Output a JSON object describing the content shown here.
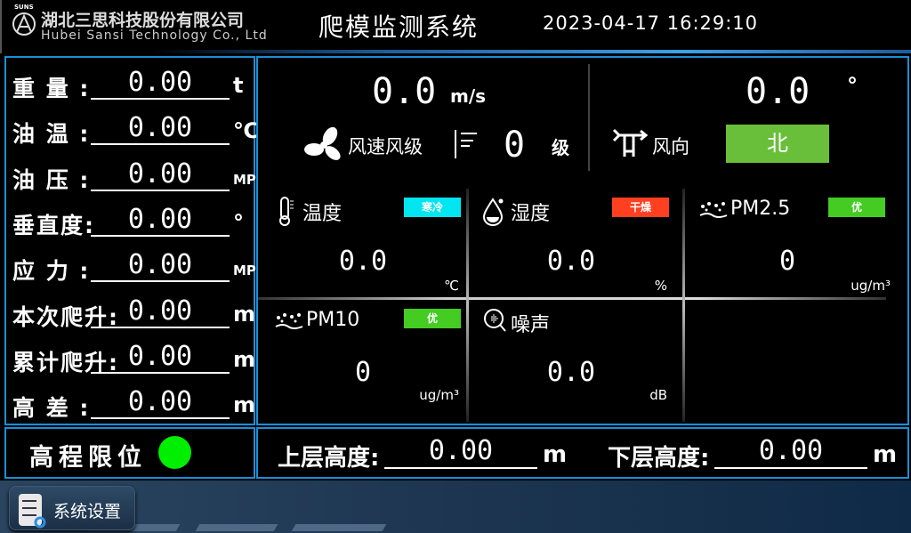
{
  "header": {
    "company_cn": "湖北三思科技股份有限公司",
    "company_en": "Hubei Sansi Technology Co., Ltd",
    "logo_top": "SUNS",
    "title": "爬模监测系统",
    "datetime": "2023-04-17 16:29:10"
  },
  "left": {
    "rows": [
      {
        "label": "重 量 :",
        "value": "0.00",
        "unit": "t"
      },
      {
        "label": "油 温 :",
        "value": "0.00",
        "unit": "℃"
      },
      {
        "label": "油 压 :",
        "value": "0.00",
        "unit": "MPa"
      },
      {
        "label": "垂直度:",
        "value": "0.00",
        "unit": "°"
      },
      {
        "label": "应 力 :",
        "value": "0.00",
        "unit": "MPa"
      },
      {
        "label": "本次爬升:",
        "value": "0.00",
        "unit": "m"
      },
      {
        "label": "累计爬升:",
        "value": "0.00",
        "unit": "m"
      },
      {
        "label": "高 差 :",
        "value": "0.00",
        "unit": "m"
      }
    ]
  },
  "wind": {
    "speed": "0.0",
    "speed_unit": "m/s",
    "speed_label": "风速风级",
    "level": "0",
    "level_unit": "级",
    "direction_deg": "0.0",
    "direction_unit": "°",
    "direction_label": "风向",
    "direction": "北",
    "direction_color": "#6abf3a"
  },
  "sensors": [
    {
      "label": "温度",
      "badge": "寒冷",
      "badge_color": "#00e5f0",
      "value": "0.0",
      "unit": "℃",
      "icon": "thermometer-icon"
    },
    {
      "label": "湿度",
      "badge": "干燥",
      "badge_color": "#ff4020",
      "value": "0.0",
      "unit": "%",
      "icon": "water-drop-icon"
    },
    {
      "label": "PM2.5",
      "badge": "优",
      "badge_color": "#44cc22",
      "value": "0",
      "unit": "ug/m³",
      "icon": "dust-icon"
    },
    {
      "label": "PM10",
      "badge": "优",
      "badge_color": "#44cc22",
      "value": "0",
      "unit": "ug/m³",
      "icon": "dust-icon"
    },
    {
      "label": "噪声",
      "value": "0.0",
      "unit": "dB",
      "icon": "noise-icon"
    }
  ],
  "limit": {
    "label": "高程限位",
    "status_color": "#00ee00"
  },
  "heights": {
    "upper_label": "上层高度:",
    "upper_value": "0.00",
    "upper_unit": "m",
    "lower_label": "下层高度:",
    "lower_value": "0.00",
    "lower_unit": "m"
  },
  "footer": {
    "settings_label": "系统设置"
  }
}
